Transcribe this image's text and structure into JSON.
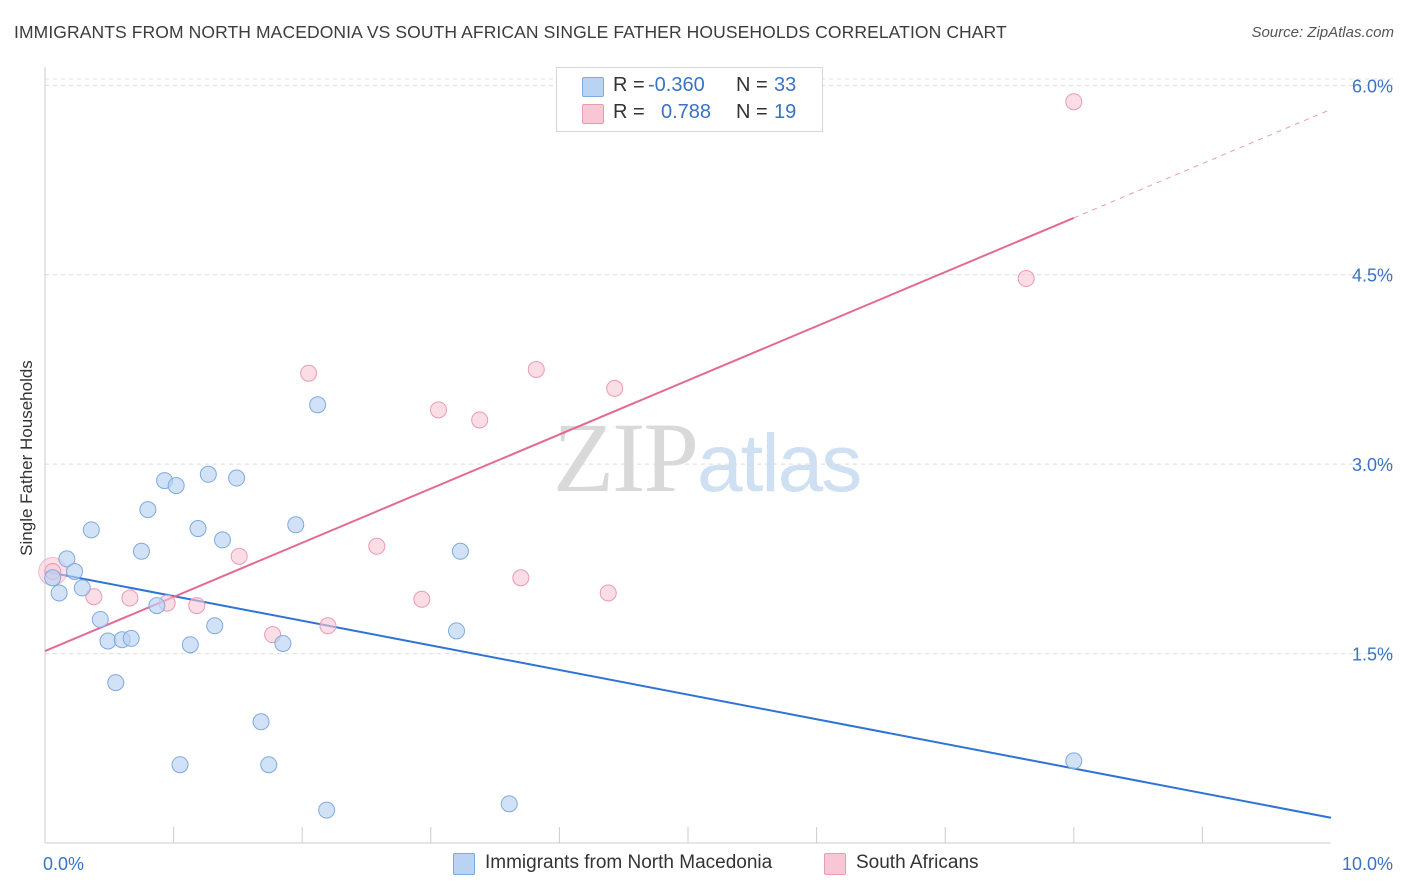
{
  "title": "IMMIGRANTS FROM NORTH MACEDONIA VS SOUTH AFRICAN SINGLE FATHER HOUSEHOLDS CORRELATION CHART",
  "source": "Source: ZipAtlas.com",
  "watermark": {
    "part1": "ZIP",
    "part2": "atlas"
  },
  "colors": {
    "blue_fill": "#b9d3f3",
    "blue_stroke": "#7fa9e0",
    "blue_line": "#2f73d3",
    "pink_fill": "#f9c6d6",
    "pink_stroke": "#eb9ab3",
    "pink_line": "#e26b95",
    "axis_text": "#3a73c4"
  },
  "legend": {
    "rows": [
      {
        "r_label": "R = ",
        "r_value": "-0.360",
        "n_label": "N = ",
        "n_value": "33"
      },
      {
        "r_label": "R = ",
        "r_value": "0.788",
        "n_label": "N = ",
        "n_value": "19"
      }
    ]
  },
  "bottom_legend": {
    "series1": "Immigrants from North Macedonia",
    "series2": "South Africans"
  },
  "chart_data": {
    "type": "scatter",
    "title": "IMMIGRANTS FROM NORTH MACEDONIA VS SOUTH AFRICAN SINGLE FATHER HOUSEHOLDS CORRELATION CHART",
    "xlabel": "",
    "ylabel": "Single Father Households",
    "xlim": [
      0,
      10
    ],
    "ylim": [
      0.0,
      6.05
    ],
    "x_tick_labels": [
      "0.0%",
      "10.0%"
    ],
    "y_ticks": [
      1.5,
      3.0,
      4.5,
      6.0
    ],
    "y_tick_labels": [
      "1.5%",
      "3.0%",
      "4.5%",
      "6.0%"
    ],
    "grid": true,
    "series": [
      {
        "name": "Immigrants from North Macedonia",
        "r": -0.36,
        "n": 33,
        "trend": {
          "x0": 0.0,
          "y0": 2.15,
          "x1": 10.0,
          "y1": 0.2
        },
        "points": [
          [
            0.06,
            2.1
          ],
          [
            0.11,
            1.98
          ],
          [
            0.17,
            2.25
          ],
          [
            0.23,
            2.15
          ],
          [
            0.29,
            2.02
          ],
          [
            0.36,
            2.48
          ],
          [
            0.43,
            1.77
          ],
          [
            0.49,
            1.6
          ],
          [
            0.55,
            1.27
          ],
          [
            0.6,
            1.61
          ],
          [
            0.67,
            1.62
          ],
          [
            0.75,
            2.31
          ],
          [
            0.8,
            2.64
          ],
          [
            0.87,
            1.88
          ],
          [
            0.93,
            2.87
          ],
          [
            1.02,
            2.83
          ],
          [
            1.05,
            0.62
          ],
          [
            1.13,
            1.57
          ],
          [
            1.19,
            2.49
          ],
          [
            1.27,
            2.92
          ],
          [
            1.32,
            1.72
          ],
          [
            1.38,
            2.4
          ],
          [
            1.49,
            2.89
          ],
          [
            1.68,
            0.96
          ],
          [
            1.74,
            0.62
          ],
          [
            1.85,
            1.58
          ],
          [
            1.95,
            2.52
          ],
          [
            2.12,
            3.47
          ],
          [
            2.19,
            0.26
          ],
          [
            3.2,
            1.68
          ],
          [
            3.23,
            2.31
          ],
          [
            3.61,
            0.31
          ],
          [
            8.0,
            0.65
          ]
        ]
      },
      {
        "name": "South Africans",
        "r": 0.788,
        "n": 19,
        "trend": {
          "x0": 0.0,
          "y0": 1.52,
          "x1": 8.0,
          "y1": 4.95,
          "dash_to_x": 10.0,
          "dash_to_y": 5.81
        },
        "points": [
          [
            0.06,
            2.15
          ],
          [
            0.38,
            1.95
          ],
          [
            0.66,
            1.94
          ],
          [
            0.95,
            1.9
          ],
          [
            1.18,
            1.88
          ],
          [
            1.51,
            2.27
          ],
          [
            1.77,
            1.65
          ],
          [
            2.05,
            3.72
          ],
          [
            2.2,
            1.72
          ],
          [
            2.58,
            2.35
          ],
          [
            2.93,
            1.93
          ],
          [
            3.06,
            3.43
          ],
          [
            3.38,
            3.35
          ],
          [
            3.7,
            2.1
          ],
          [
            3.82,
            3.75
          ],
          [
            4.38,
            1.98
          ],
          [
            4.43,
            3.6
          ],
          [
            7.63,
            4.47
          ],
          [
            8.0,
            5.87
          ]
        ]
      }
    ]
  }
}
